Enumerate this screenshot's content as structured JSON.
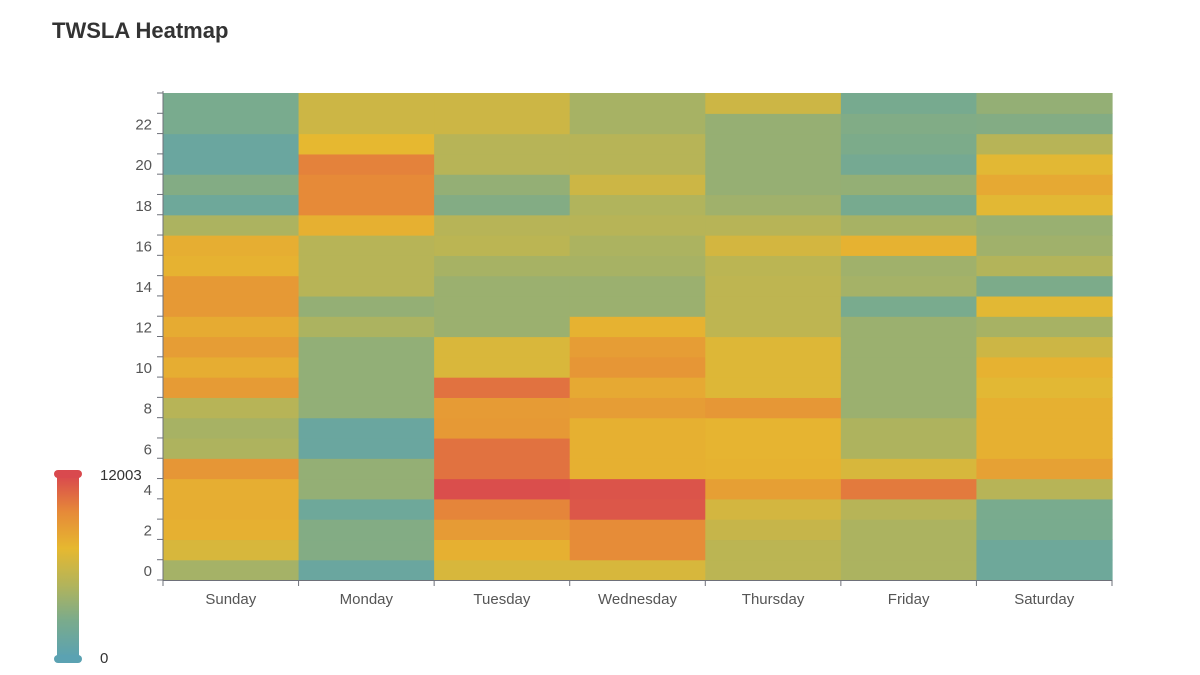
{
  "title": "TWSLA Heatmap",
  "chart_data": {
    "type": "heatmap",
    "title": "TWSLA Heatmap",
    "x_categories": [
      "Sunday",
      "Monday",
      "Tuesday",
      "Wednesday",
      "Thursday",
      "Friday",
      "Saturday"
    ],
    "y_range": [
      0,
      23
    ],
    "y_ticks": [
      0,
      2,
      4,
      6,
      8,
      10,
      12,
      14,
      16,
      18,
      20,
      22
    ],
    "visual_map": {
      "min": 0,
      "max": 12003,
      "min_label": "0",
      "max_label": "12003",
      "colors": [
        "#5ba2b2",
        "#7aab8c",
        "#b3b45a",
        "#e6b830",
        "#e68a38",
        "#d9494e"
      ]
    },
    "values_by_day_hour": {
      "Sunday": [
        4200,
        6500,
        7600,
        7800,
        7700,
        9000,
        4600,
        4300,
        5000,
        8700,
        7800,
        8600,
        7900,
        8800,
        8800,
        7500,
        7700,
        4500,
        1500,
        2800,
        1200,
        1200,
        2300,
        2300
      ],
      "Monday": [
        1200,
        2800,
        2800,
        1500,
        3500,
        3500,
        1200,
        1200,
        3400,
        3400,
        3400,
        3400,
        4500,
        3500,
        5000,
        5000,
        5000,
        7600,
        9600,
        9600,
        9900,
        7200,
        6000,
        6000
      ],
      "Tuesday": [
        6500,
        7600,
        8700,
        9800,
        11800,
        10500,
        10500,
        8800,
        8700,
        10500,
        6600,
        6600,
        3800,
        3800,
        3800,
        4300,
        5200,
        5000,
        2800,
        3500,
        5000,
        5000,
        6000,
        6000
      ],
      "Wednesday": [
        6500,
        9500,
        9500,
        11500,
        11600,
        7600,
        7600,
        7600,
        8600,
        8000,
        9000,
        8600,
        7500,
        3800,
        3800,
        4300,
        4500,
        5000,
        4700,
        6000,
        5000,
        5000,
        4300,
        4300
      ],
      "Thursday": [
        5200,
        5200,
        5700,
        6300,
        8500,
        7500,
        7400,
        7400,
        8900,
        6800,
        6800,
        6800,
        5300,
        5300,
        5300,
        5200,
        6300,
        5000,
        4000,
        3600,
        3600,
        3600,
        3600,
        6000
      ],
      "Friday": [
        4500,
        4500,
        4500,
        5000,
        10200,
        6500,
        4600,
        4600,
        3800,
        3800,
        3800,
        3800,
        3800,
        2300,
        4200,
        4000,
        7500,
        4300,
        2200,
        3500,
        2000,
        2500,
        2700,
        2200
      ],
      "Saturday": [
        1500,
        1500,
        2300,
        2300,
        5000,
        8400,
        7600,
        7600,
        7600,
        7000,
        7500,
        6000,
        4300,
        7000,
        2500,
        4800,
        4000,
        3700,
        7000,
        8000,
        7000,
        5000,
        2800,
        3500
      ]
    }
  }
}
